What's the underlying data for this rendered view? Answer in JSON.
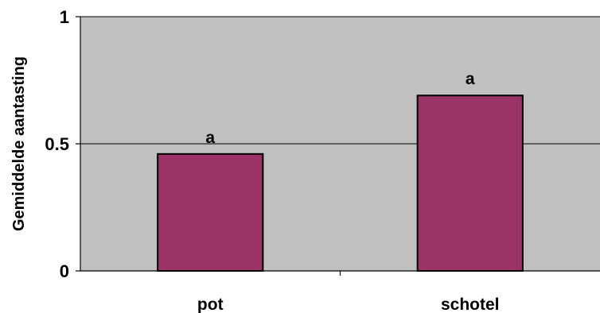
{
  "chart_data": {
    "type": "bar",
    "title": "",
    "xlabel": "",
    "ylabel": "Gemiddelde aantasting",
    "categories": [
      "pot",
      "schotel"
    ],
    "values": [
      0.46,
      0.69
    ],
    "data_labels": [
      "a",
      "a"
    ],
    "ylim": [
      0,
      1
    ],
    "yticks": [
      0,
      0.5,
      1
    ],
    "ytick_labels": [
      "0",
      "0.5",
      "1"
    ],
    "grid": true,
    "legend": "none",
    "colors": {
      "plot_background": "#c0c0c0",
      "bar_fill": "#993366",
      "bar_stroke": "#000000",
      "gridline": "#000000"
    }
  }
}
